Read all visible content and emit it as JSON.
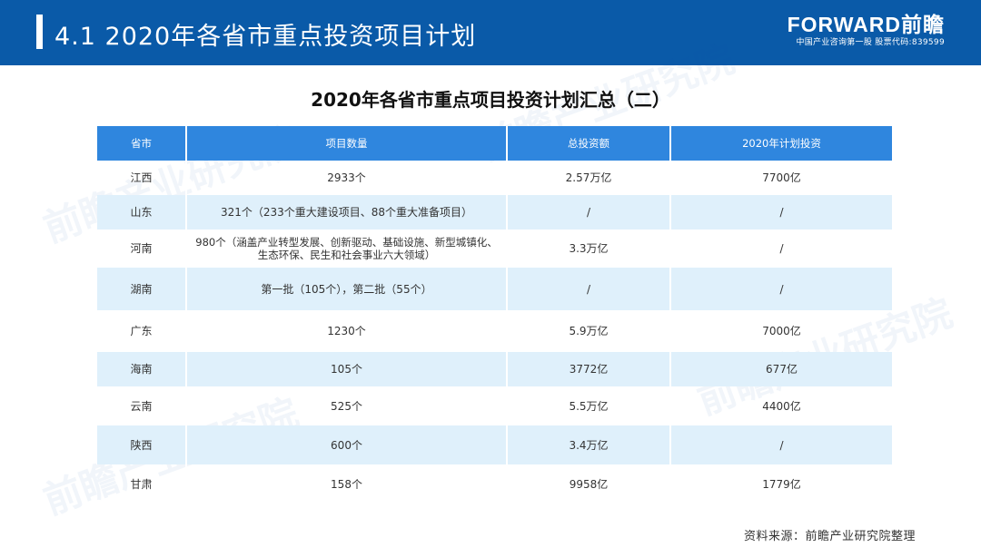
{
  "header": {
    "title": "4.1  2020年各省市重点投资项目计划",
    "brand_logo": "FORWARD前瞻",
    "brand_tagline": "中国产业咨询第一股  股票代码:839599"
  },
  "table": {
    "title": "2020年各省市重点项目投资计划汇总（二）",
    "columns": [
      "省市",
      "项目数量",
      "总投资额",
      "2020年计划投资"
    ],
    "rows": [
      {
        "province": "江西",
        "projects": "2933个",
        "total": "2.57万亿",
        "plan2020": "7700亿"
      },
      {
        "province": "山东",
        "projects": "321个（233个重大建设项目、88个重大准备项目）",
        "total": "/",
        "plan2020": "/"
      },
      {
        "province": "河南",
        "projects": "980个（涵盖产业转型发展、创新驱动、基础设施、新型城镇化、生态环保、民生和社会事业六大领域）",
        "total": "3.3万亿",
        "plan2020": "/"
      },
      {
        "province": "湖南",
        "projects": "第一批（105个），第二批（55个）",
        "total": "/",
        "plan2020": "/"
      },
      {
        "province": "广东",
        "projects": "1230个",
        "total": "5.9万亿",
        "plan2020": "7000亿"
      },
      {
        "province": "海南",
        "projects": "105个",
        "total": "3772亿",
        "plan2020": "677亿"
      },
      {
        "province": "云南",
        "projects": "525个",
        "total": "5.5万亿",
        "plan2020": "4400亿"
      },
      {
        "province": "陕西",
        "projects": "600个",
        "total": "3.4万亿",
        "plan2020": "/"
      },
      {
        "province": "甘肃",
        "projects": "158个",
        "total": "9958亿",
        "plan2020": "1779亿"
      }
    ]
  },
  "source": "资料来源：前瞻产业研究院整理",
  "watermark_text": "前瞻产业研究院"
}
